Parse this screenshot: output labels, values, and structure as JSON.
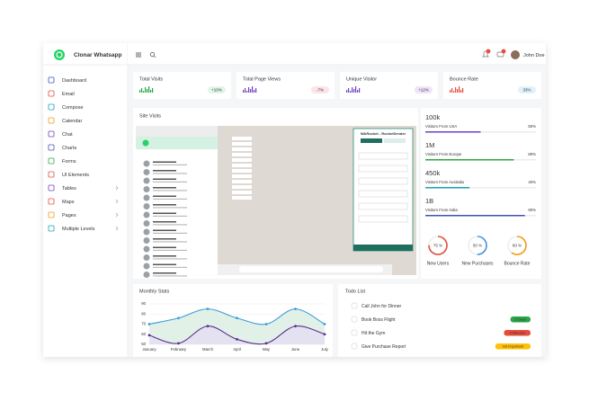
{
  "brand": "Clonar Whatsapp",
  "user": "John Doe",
  "sidebar": [
    "Dashboard",
    "Email",
    "Compose",
    "Calendar",
    "Chat",
    "Charts",
    "Forms",
    "UI Elements",
    "Tables",
    "Maps",
    "Pages",
    "Multiple Levels"
  ],
  "cards": [
    {
      "title": "Total Visits",
      "badge": "+10%"
    },
    {
      "title": "Total Page Views",
      "badge": "-7%"
    },
    {
      "title": "Unique Visitor",
      "badge": "+12%"
    },
    {
      "title": "Bounce Rate",
      "badge": "33%"
    }
  ],
  "site_visits": {
    "title": "Site Visits",
    "popup_title": "WARocket - RocketSender"
  },
  "regions": [
    {
      "value": "100k",
      "label": "Visitors From USA",
      "percent": 50,
      "percent_label": "50%"
    },
    {
      "value": "1M",
      "label": "Visitors From Europe",
      "percent": 80,
      "percent_label": "80%"
    },
    {
      "value": "450k",
      "label": "Visitors From Australia",
      "percent": 40,
      "percent_label": "40%"
    },
    {
      "value": "1B",
      "label": "Visitors From India",
      "percent": 90,
      "percent_label": "90%"
    }
  ],
  "gauges": [
    {
      "value": 75,
      "value_label": "75 %",
      "label": "New Users"
    },
    {
      "value": 50,
      "value_label": "50 %",
      "label": "New Purchases"
    },
    {
      "value": 60,
      "value_label": "60 %",
      "label": "Bounce Rate"
    }
  ],
  "chart_data": {
    "type": "line",
    "title": "Monthly Stats",
    "categories": [
      "January",
      "February",
      "March",
      "April",
      "May",
      "June",
      "July"
    ],
    "series": [
      {
        "color": "#3b9bd8",
        "values": [
          70,
          76,
          85,
          76,
          70,
          85,
          70
        ]
      },
      {
        "color": "#5b2c8f",
        "values": [
          59,
          51,
          68,
          55,
          51,
          68,
          60
        ]
      }
    ],
    "ylim": [
      50,
      90
    ],
    "yticks": [
      50,
      60,
      70,
      80,
      90
    ],
    "grid": true
  },
  "todo": {
    "title": "Todo List",
    "items": [
      {
        "text": "Call John for Dinner"
      },
      {
        "text": "Book Boss Flight",
        "badge": "2 Days"
      },
      {
        "text": "Hit the Gym",
        "badge": "3 Minutes"
      },
      {
        "text": "Give Purchase Report",
        "badge": "not important"
      }
    ]
  }
}
